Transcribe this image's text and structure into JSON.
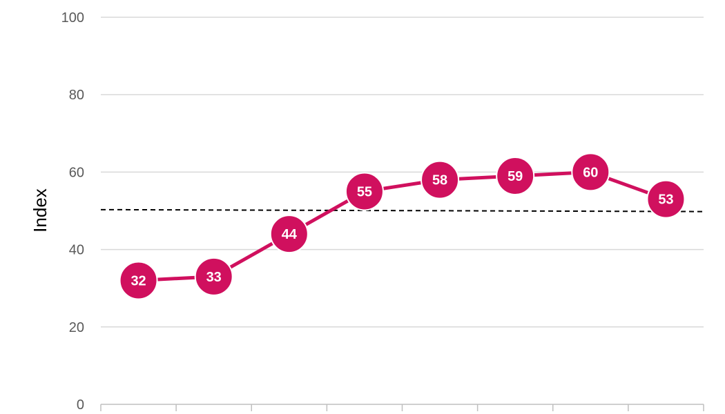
{
  "chart_data": {
    "type": "line",
    "title": "",
    "xlabel": "",
    "ylabel": "Index",
    "ylim": [
      0,
      100
    ],
    "yticks": [
      0,
      20,
      40,
      60,
      80,
      100
    ],
    "grid": true,
    "series": [
      {
        "values": [
          32,
          33,
          44,
          55,
          58,
          59,
          60,
          53
        ],
        "color": "#D0105E"
      }
    ],
    "reference_line": {
      "value": 50.3,
      "value_end": 49.8,
      "style": "dashed",
      "color": "#000000"
    }
  }
}
